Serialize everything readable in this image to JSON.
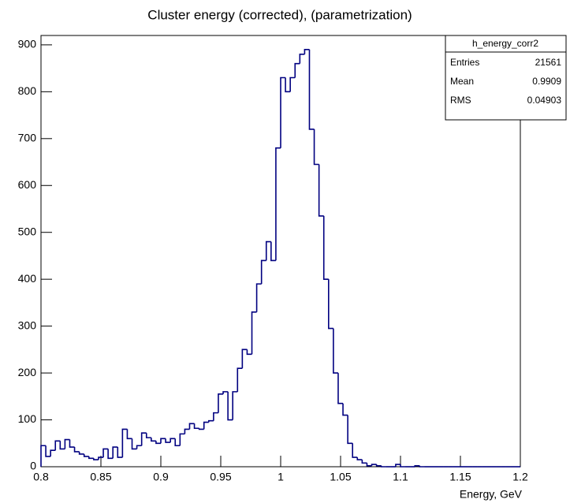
{
  "chart_data": {
    "type": "histogram",
    "title": "Cluster energy (corrected), (parametrization)",
    "x_label": "Energy, GeV",
    "color": "#000080",
    "bins": [
      0.8,
      0.804,
      0.808,
      0.812,
      0.816,
      0.82,
      0.824,
      0.828,
      0.832,
      0.836,
      0.84,
      0.844,
      0.848,
      0.852,
      0.856,
      0.86,
      0.864,
      0.868,
      0.872,
      0.876,
      0.88,
      0.884,
      0.888,
      0.892,
      0.896,
      0.9,
      0.904,
      0.908,
      0.912,
      0.916,
      0.92,
      0.924,
      0.928,
      0.932,
      0.936,
      0.94,
      0.944,
      0.948,
      0.952,
      0.956,
      0.96,
      0.964,
      0.968,
      0.972,
      0.976,
      0.98,
      0.984,
      0.988,
      0.992,
      0.996,
      1.0,
      1.004,
      1.008,
      1.012,
      1.016,
      1.02,
      1.024,
      1.028,
      1.032,
      1.036,
      1.04,
      1.044,
      1.048,
      1.052,
      1.056,
      1.06,
      1.064,
      1.068,
      1.072,
      1.076,
      1.08,
      1.084,
      1.088,
      1.092,
      1.096,
      1.1,
      1.104,
      1.108,
      1.112,
      1.116,
      1.12,
      1.124,
      1.128,
      1.132,
      1.136,
      1.14,
      1.144,
      1.148,
      1.152,
      1.156,
      1.16,
      1.164,
      1.168,
      1.172,
      1.176,
      1.18,
      1.184,
      1.188,
      1.192,
      1.196,
      1.2
    ],
    "values": [
      45,
      22,
      35,
      55,
      38,
      58,
      42,
      32,
      27,
      22,
      18,
      15,
      20,
      38,
      18,
      42,
      20,
      80,
      60,
      38,
      45,
      72,
      62,
      55,
      50,
      60,
      52,
      60,
      45,
      70,
      80,
      92,
      82,
      80,
      95,
      98,
      115,
      155,
      160,
      100,
      160,
      210,
      250,
      240,
      330,
      390,
      440,
      480,
      440,
      680,
      830,
      800,
      830,
      860,
      880,
      890,
      720,
      645,
      535,
      400,
      295,
      200,
      135,
      110,
      50,
      20,
      15,
      8,
      2,
      5,
      2,
      0,
      0,
      0,
      5,
      0,
      0,
      0,
      2,
      0,
      0,
      0,
      0,
      0,
      0,
      0,
      0,
      0,
      0,
      0,
      0,
      0,
      0,
      0,
      0,
      0,
      0,
      0,
      0,
      0
    ],
    "xlim": [
      0.8,
      1.2
    ],
    "xticks": [
      0.8,
      0.85,
      0.9,
      0.95,
      1,
      1.05,
      1.1,
      1.15,
      1.2
    ],
    "ylim": [
      0,
      920
    ],
    "yticks": [
      0,
      100,
      200,
      300,
      400,
      500,
      600,
      700,
      800,
      900
    ],
    "stats": {
      "name": "h_energy_corr2",
      "rows": [
        {
          "label": "Entries",
          "value": 21561
        },
        {
          "label": "Mean",
          "value": 0.9909
        },
        {
          "label": "RMS",
          "value": 0.04903
        }
      ]
    }
  }
}
